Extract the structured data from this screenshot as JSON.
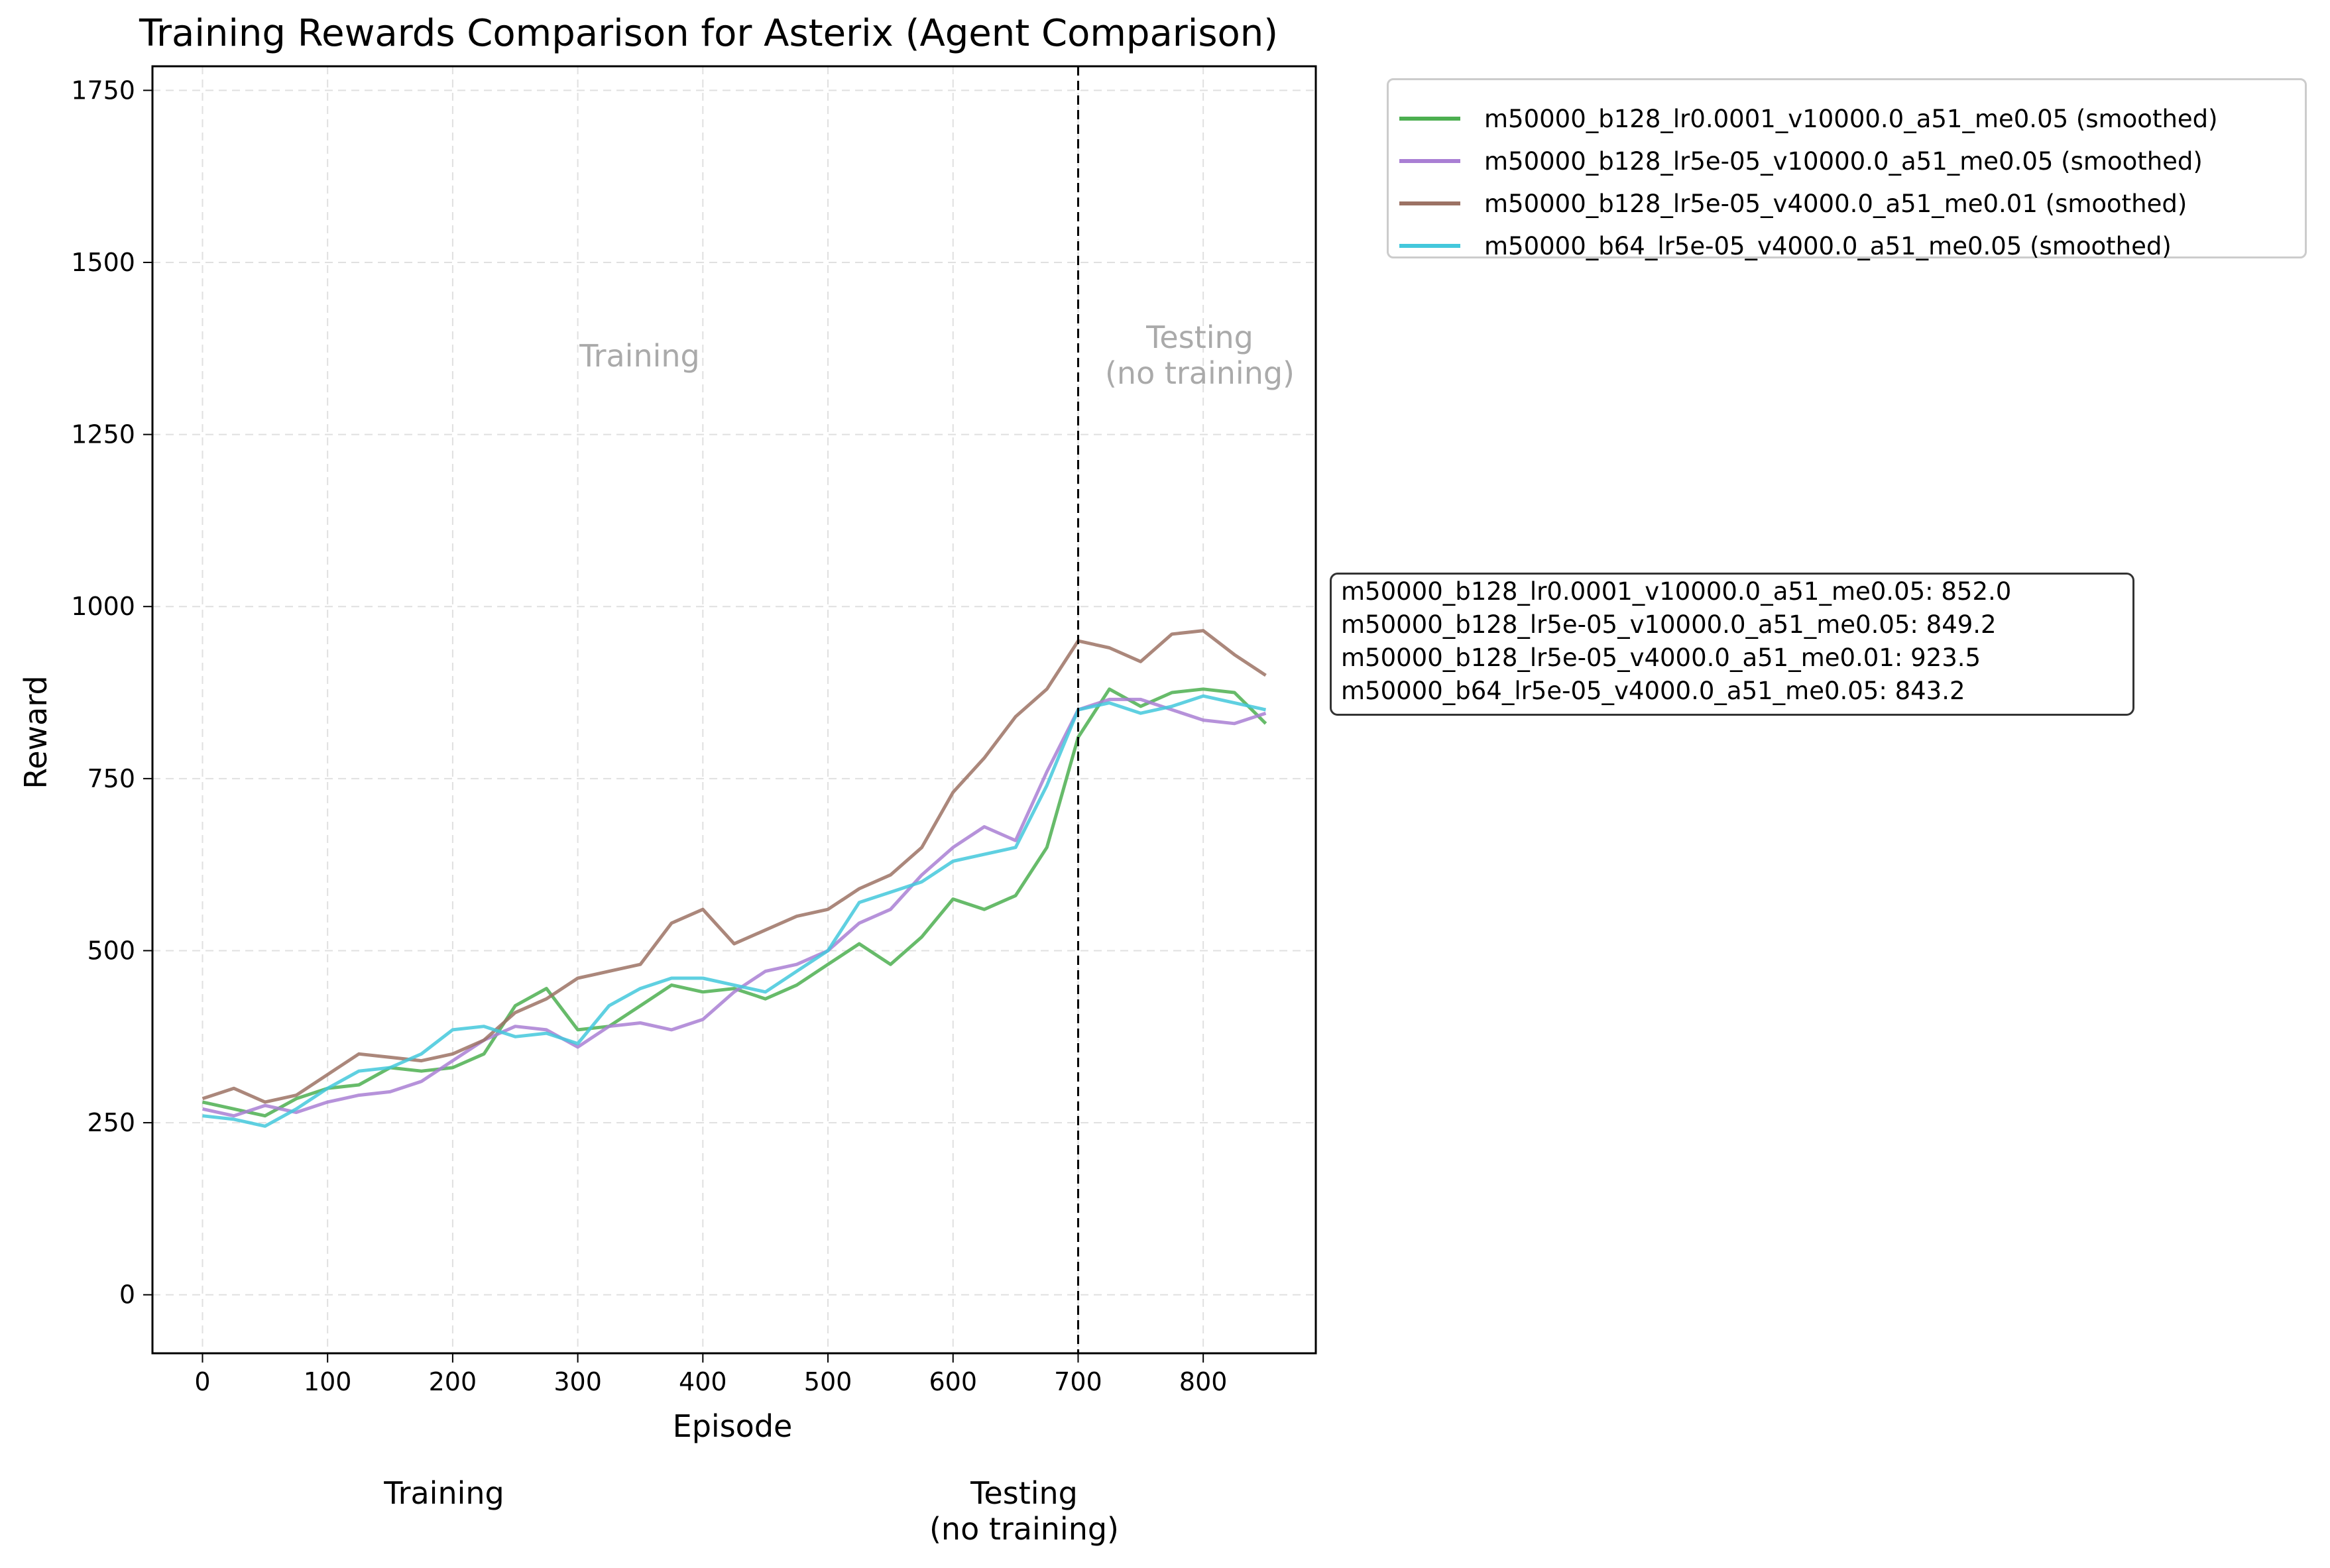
{
  "chart_data": {
    "type": "line",
    "title": "Training Rewards Comparison for Asterix (Agent Comparison)",
    "xlabel": "Episode",
    "ylabel": "Reward",
    "xlim": [
      -40,
      890
    ],
    "ylim": [
      -85,
      1785
    ],
    "xticks": [
      0,
      100,
      200,
      300,
      400,
      500,
      600,
      700,
      800
    ],
    "yticks": [
      0,
      250,
      500,
      750,
      1000,
      1250,
      1500,
      1750
    ],
    "grid": true,
    "legend_position": "outside-top-right",
    "split_episode": 700,
    "region_labels": {
      "training": "Training",
      "testing": "Testing\n(no training)"
    },
    "bottom_labels": {
      "training": "Training",
      "testing": "Testing\n(no training)"
    },
    "x": [
      0,
      25,
      50,
      75,
      100,
      125,
      150,
      175,
      200,
      225,
      250,
      275,
      300,
      325,
      350,
      375,
      400,
      425,
      450,
      475,
      500,
      525,
      550,
      575,
      600,
      625,
      650,
      675,
      700,
      725,
      750,
      775,
      800,
      825,
      850
    ],
    "series": [
      {
        "name": "m50000_b128_lr0.0001_v10000.0_a51_me0.05 (smoothed)",
        "color": "#4caf50",
        "values": [
          280,
          270,
          260,
          285,
          300,
          305,
          330,
          325,
          330,
          350,
          420,
          445,
          385,
          390,
          420,
          450,
          440,
          445,
          430,
          450,
          480,
          510,
          480,
          520,
          575,
          560,
          580,
          650,
          810,
          880,
          855,
          875,
          880,
          875,
          830
        ]
      },
      {
        "name": "m50000_b128_lr5e-05_v10000.0_a51_me0.05 (smoothed)",
        "color": "#a97fd4",
        "values": [
          270,
          260,
          275,
          265,
          280,
          290,
          295,
          310,
          340,
          370,
          390,
          385,
          360,
          390,
          395,
          385,
          400,
          440,
          470,
          480,
          500,
          540,
          560,
          610,
          650,
          680,
          660,
          760,
          850,
          865,
          865,
          850,
          835,
          830,
          845
        ]
      },
      {
        "name": "m50000_b128_lr5e-05_v4000.0_a51_me0.01 (smoothed)",
        "color": "#9c7264",
        "values": [
          285,
          300,
          280,
          290,
          320,
          350,
          345,
          340,
          350,
          370,
          410,
          430,
          460,
          470,
          480,
          540,
          560,
          510,
          530,
          550,
          560,
          590,
          610,
          650,
          730,
          780,
          840,
          880,
          950,
          940,
          920,
          960,
          965,
          930,
          900
        ]
      },
      {
        "name": "m50000_b64_lr5e-05_v4000.0_a51_me0.05 (smoothed)",
        "color": "#43c8dc",
        "values": [
          260,
          255,
          245,
          270,
          300,
          325,
          330,
          350,
          385,
          390,
          375,
          380,
          365,
          420,
          445,
          460,
          460,
          450,
          440,
          470,
          500,
          570,
          585,
          600,
          630,
          640,
          650,
          740,
          850,
          860,
          845,
          855,
          870,
          860,
          850
        ]
      }
    ],
    "final_rewards": [
      "m50000_b128_lr0.0001_v10000.0_a51_me0.05: 852.0",
      "m50000_b128_lr5e-05_v10000.0_a51_me0.05: 849.2",
      "m50000_b128_lr5e-05_v4000.0_a51_me0.01: 923.5",
      "m50000_b64_lr5e-05_v4000.0_a51_me0.05: 843.2"
    ]
  }
}
